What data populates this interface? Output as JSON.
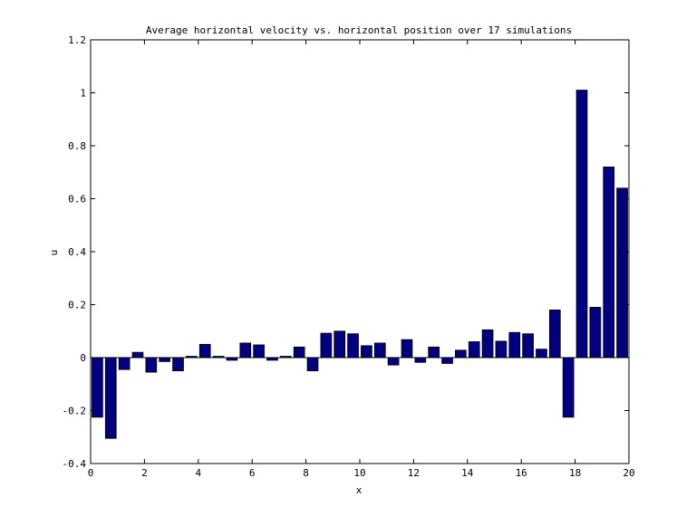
{
  "chart_data": {
    "type": "bar",
    "title": "Average horizontal velocity vs. horizontal position over 17 simulations",
    "xlabel": "x",
    "ylabel": "u",
    "xlim": [
      0,
      20
    ],
    "ylim": [
      -0.4,
      1.2
    ],
    "xticks": [
      "0",
      "2",
      "4",
      "6",
      "8",
      "10",
      "12",
      "14",
      "16",
      "18",
      "20"
    ],
    "yticks": [
      "-0.4",
      "-0.2",
      "0",
      "0.2",
      "0.4",
      "0.6",
      "0.8",
      "1",
      "1.2"
    ],
    "grid": false,
    "bar_color": "#000080",
    "bar_width": 0.4,
    "x": [
      0.25,
      0.75,
      1.25,
      1.75,
      2.25,
      2.75,
      3.25,
      3.75,
      4.25,
      4.75,
      5.25,
      5.75,
      6.25,
      6.75,
      7.25,
      7.75,
      8.25,
      8.75,
      9.25,
      9.75,
      10.25,
      10.75,
      11.25,
      11.75,
      12.25,
      12.75,
      13.25,
      13.75,
      14.25,
      14.75,
      15.25,
      15.75,
      16.25,
      16.75,
      17.25,
      17.75,
      18.25,
      18.75,
      19.25,
      19.75
    ],
    "values": [
      -0.225,
      -0.305,
      -0.045,
      0.02,
      -0.055,
      -0.015,
      -0.05,
      0.005,
      0.05,
      0.005,
      -0.01,
      0.055,
      0.048,
      -0.01,
      0.005,
      0.04,
      -0.05,
      0.092,
      0.1,
      0.09,
      0.045,
      0.055,
      -0.028,
      0.068,
      -0.018,
      0.04,
      -0.022,
      0.028,
      0.06,
      0.105,
      0.062,
      0.095,
      0.09,
      0.032,
      0.18,
      -0.225,
      1.01,
      0.19,
      0.72,
      0.64
    ]
  }
}
